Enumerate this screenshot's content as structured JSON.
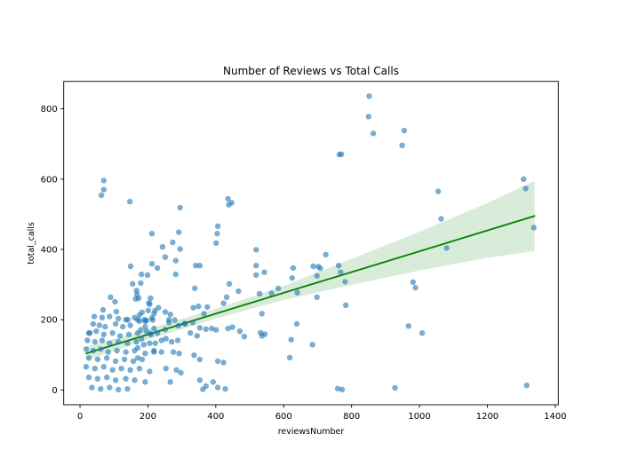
{
  "figure": {
    "background": "#ffffff"
  },
  "chart_data": {
    "type": "scatter",
    "title": "Number of Reviews vs Total Calls",
    "xlabel": "reviewsNumber",
    "ylabel": "total_calls",
    "xlim": [
      -48,
      1409
    ],
    "ylim": [
      -42,
      878
    ],
    "x_ticks": [
      0,
      200,
      400,
      600,
      800,
      1000,
      1200,
      1400
    ],
    "y_ticks": [
      0,
      200,
      400,
      600,
      800
    ],
    "grid": false,
    "legend": "none",
    "colors": {
      "points": "#1f77b4",
      "point_alpha": 0.6,
      "regression_line": "#008000",
      "ci_band": "#008000",
      "ci_band_alpha": 0.15,
      "axes": "#000000"
    },
    "regression_line": {
      "x": [
        18,
        1339
      ],
      "y": [
        104,
        495
      ]
    },
    "ci_band": {
      "x": [
        18,
        200,
        400,
        600,
        800,
        1000,
        1200,
        1339
      ],
      "upper": [
        123,
        173,
        231,
        296,
        373,
        450,
        532,
        595
      ],
      "lower": [
        85,
        143,
        203,
        256,
        299,
        340,
        376,
        395
      ]
    },
    "points": [
      [
        852,
        836
      ],
      [
        850,
        778
      ],
      [
        864,
        730
      ],
      [
        955,
        738
      ],
      [
        949,
        696
      ],
      [
        764,
        670
      ],
      [
        770,
        671
      ],
      [
        1307,
        600
      ],
      [
        1313,
        573
      ],
      [
        1055,
        565
      ],
      [
        1064,
        487
      ],
      [
        1337,
        462
      ],
      [
        1080,
        404
      ],
      [
        981,
        307
      ],
      [
        988,
        291
      ],
      [
        1316,
        13
      ],
      [
        968,
        182
      ],
      [
        1008,
        162
      ],
      [
        928,
        6
      ],
      [
        70,
        596
      ],
      [
        70,
        570
      ],
      [
        63,
        554
      ],
      [
        147,
        536
      ],
      [
        295,
        519
      ],
      [
        436,
        544
      ],
      [
        447,
        533
      ],
      [
        438,
        527
      ],
      [
        406,
        466
      ],
      [
        404,
        445
      ],
      [
        401,
        418
      ],
      [
        212,
        445
      ],
      [
        291,
        449
      ],
      [
        243,
        407
      ],
      [
        273,
        420
      ],
      [
        295,
        401
      ],
      [
        519,
        399
      ],
      [
        724,
        385
      ],
      [
        251,
        378
      ],
      [
        282,
        368
      ],
      [
        341,
        354
      ],
      [
        353,
        354
      ],
      [
        212,
        359
      ],
      [
        149,
        352
      ],
      [
        228,
        347
      ],
      [
        519,
        354
      ],
      [
        687,
        352
      ],
      [
        702,
        351
      ],
      [
        708,
        346
      ],
      [
        628,
        347
      ],
      [
        762,
        354
      ],
      [
        768,
        335
      ],
      [
        543,
        335
      ],
      [
        519,
        327
      ],
      [
        698,
        325
      ],
      [
        181,
        329
      ],
      [
        199,
        327
      ],
      [
        282,
        329
      ],
      [
        625,
        319
      ],
      [
        781,
        308
      ],
      [
        155,
        302
      ],
      [
        179,
        304
      ],
      [
        440,
        302
      ],
      [
        338,
        289
      ],
      [
        584,
        289
      ],
      [
        564,
        275
      ],
      [
        640,
        277
      ],
      [
        698,
        264
      ],
      [
        529,
        274
      ],
      [
        467,
        281
      ],
      [
        167,
        283
      ],
      [
        168,
        272
      ],
      [
        90,
        264
      ],
      [
        173,
        261
      ],
      [
        208,
        261
      ],
      [
        432,
        264
      ],
      [
        783,
        241
      ],
      [
        536,
        217
      ],
      [
        536,
        154
      ],
      [
        639,
        188
      ],
      [
        622,
        143
      ],
      [
        685,
        129
      ],
      [
        618,
        92
      ],
      [
        759,
        4
      ],
      [
        772,
        1
      ],
      [
        103,
        251
      ],
      [
        164,
        259
      ],
      [
        203,
        248
      ],
      [
        68,
        228
      ],
      [
        107,
        223
      ],
      [
        221,
        226
      ],
      [
        251,
        222
      ],
      [
        334,
        234
      ],
      [
        365,
        217
      ],
      [
        175,
        213
      ],
      [
        190,
        200
      ],
      [
        212,
        205
      ],
      [
        141,
        200
      ],
      [
        262,
        200
      ],
      [
        290,
        183
      ],
      [
        308,
        189
      ],
      [
        325,
        162
      ],
      [
        345,
        154
      ],
      [
        251,
        172
      ],
      [
        228,
        162
      ],
      [
        42,
        209
      ],
      [
        29,
        162
      ],
      [
        205,
        244
      ],
      [
        231,
        234
      ],
      [
        349,
        238
      ],
      [
        375,
        236
      ],
      [
        423,
        247
      ],
      [
        183,
        221
      ],
      [
        201,
        226
      ],
      [
        218,
        217
      ],
      [
        266,
        215
      ],
      [
        170,
        200
      ],
      [
        192,
        196
      ],
      [
        214,
        199
      ],
      [
        262,
        192
      ],
      [
        279,
        199
      ],
      [
        310,
        188
      ],
      [
        332,
        192
      ],
      [
        353,
        177
      ],
      [
        371,
        173
      ],
      [
        388,
        175
      ],
      [
        401,
        171
      ],
      [
        436,
        175
      ],
      [
        449,
        179
      ],
      [
        471,
        167
      ],
      [
        484,
        152
      ],
      [
        532,
        163
      ],
      [
        545,
        159
      ],
      [
        179,
        171
      ],
      [
        196,
        167
      ],
      [
        207,
        160
      ],
      [
        181,
        146
      ],
      [
        205,
        133
      ],
      [
        240,
        141
      ],
      [
        253,
        146
      ],
      [
        270,
        137
      ],
      [
        288,
        141
      ],
      [
        218,
        112
      ],
      [
        240,
        108
      ],
      [
        275,
        108
      ],
      [
        292,
        104
      ],
      [
        336,
        99
      ],
      [
        353,
        87
      ],
      [
        406,
        82
      ],
      [
        423,
        78
      ],
      [
        253,
        61
      ],
      [
        284,
        57
      ],
      [
        297,
        49
      ],
      [
        266,
        23
      ],
      [
        353,
        28
      ],
      [
        371,
        11
      ],
      [
        392,
        23
      ],
      [
        406,
        7
      ],
      [
        428,
        3
      ],
      [
        362,
        2
      ],
      [
        170,
        91
      ],
      [
        170,
        120
      ],
      [
        65,
        206
      ],
      [
        87,
        209
      ],
      [
        113,
        203
      ],
      [
        135,
        200
      ],
      [
        161,
        206
      ],
      [
        175,
        196
      ],
      [
        196,
        198
      ],
      [
        39,
        188
      ],
      [
        57,
        184
      ],
      [
        74,
        180
      ],
      [
        105,
        188
      ],
      [
        126,
        180
      ],
      [
        148,
        184
      ],
      [
        192,
        180
      ],
      [
        218,
        175
      ],
      [
        26,
        162
      ],
      [
        48,
        167
      ],
      [
        70,
        158
      ],
      [
        96,
        162
      ],
      [
        118,
        154
      ],
      [
        144,
        158
      ],
      [
        170,
        162
      ],
      [
        209,
        158
      ],
      [
        22,
        141
      ],
      [
        44,
        137
      ],
      [
        65,
        141
      ],
      [
        87,
        133
      ],
      [
        113,
        137
      ],
      [
        140,
        133
      ],
      [
        166,
        137
      ],
      [
        188,
        129
      ],
      [
        222,
        133
      ],
      [
        18,
        116
      ],
      [
        39,
        112
      ],
      [
        61,
        116
      ],
      [
        83,
        108
      ],
      [
        109,
        112
      ],
      [
        135,
        108
      ],
      [
        161,
        112
      ],
      [
        192,
        104
      ],
      [
        218,
        108
      ],
      [
        26,
        91
      ],
      [
        52,
        87
      ],
      [
        79,
        91
      ],
      [
        105,
        82
      ],
      [
        131,
        87
      ],
      [
        157,
        82
      ],
      [
        183,
        87
      ],
      [
        18,
        66
      ],
      [
        44,
        61
      ],
      [
        70,
        66
      ],
      [
        96,
        57
      ],
      [
        122,
        61
      ],
      [
        148,
        57
      ],
      [
        175,
        61
      ],
      [
        205,
        53
      ],
      [
        26,
        36
      ],
      [
        52,
        32
      ],
      [
        79,
        36
      ],
      [
        105,
        28
      ],
      [
        135,
        32
      ],
      [
        161,
        28
      ],
      [
        192,
        23
      ],
      [
        35,
        7
      ],
      [
        61,
        3
      ],
      [
        87,
        7
      ],
      [
        113,
        1
      ],
      [
        140,
        3
      ]
    ]
  }
}
